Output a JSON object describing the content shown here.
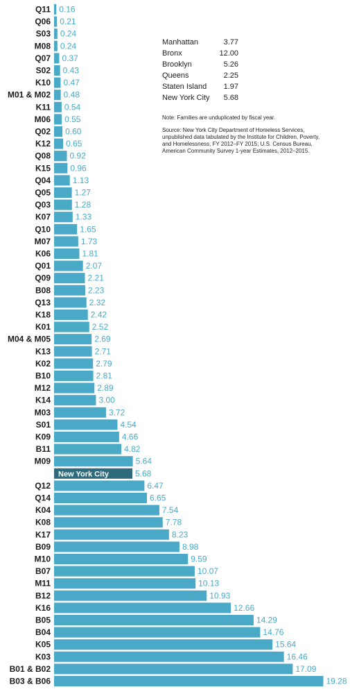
{
  "chart_data": {
    "type": "bar",
    "orientation": "horizontal",
    "title": "",
    "xlabel": "",
    "ylabel": "",
    "xlim": [
      0,
      20
    ],
    "grid": false,
    "colors": {
      "bar": "#4aa9c6",
      "highlight": "#2e6a7c",
      "value_text": "#4aa9c6"
    },
    "categories": [
      "Q11",
      "Q06",
      "S03",
      "M08",
      "Q07",
      "S02",
      "K10",
      "M01 & M02",
      "K11",
      "M06",
      "Q02",
      "K12",
      "Q08",
      "K15",
      "Q04",
      "Q05",
      "Q03",
      "K07",
      "Q10",
      "M07",
      "K06",
      "Q01",
      "Q09",
      "B08",
      "Q13",
      "K18",
      "K01",
      "M04 & M05",
      "K13",
      "K02",
      "B10",
      "M12",
      "K14",
      "M03",
      "S01",
      "K09",
      "B11",
      "M09",
      "New York City",
      "Q12",
      "Q14",
      "K04",
      "K08",
      "K17",
      "B09",
      "M10",
      "B07",
      "M11",
      "B12",
      "K16",
      "B05",
      "B04",
      "K05",
      "K03",
      "B01 & B02",
      "B03 & B06"
    ],
    "values": [
      0.16,
      0.21,
      0.24,
      0.24,
      0.37,
      0.43,
      0.47,
      0.48,
      0.54,
      0.55,
      0.6,
      0.65,
      0.92,
      0.96,
      1.13,
      1.27,
      1.28,
      1.33,
      1.65,
      1.73,
      1.81,
      2.07,
      2.21,
      2.23,
      2.32,
      2.42,
      2.52,
      2.69,
      2.71,
      2.79,
      2.81,
      2.89,
      3.0,
      3.72,
      4.54,
      4.66,
      4.82,
      5.64,
      5.68,
      6.47,
      6.65,
      7.54,
      7.78,
      8.23,
      8.98,
      9.59,
      10.07,
      10.13,
      10.93,
      12.66,
      14.29,
      14.76,
      15.64,
      16.46,
      17.09,
      19.28
    ],
    "value_labels": [
      "0.16",
      "0.21",
      "0.24",
      "0.24",
      "0.37",
      "0.43",
      "0.47",
      "0.48",
      "0.54",
      "0.55",
      "0.60",
      "0.65",
      "0.92",
      "0.96",
      "1.13",
      "1.27",
      "1.28",
      "1.33",
      "1.65",
      "1.73",
      "1.81",
      "2.07",
      "2.21",
      "2.23",
      "2.32",
      "2.42",
      "2.52",
      "2.69",
      "2.71",
      "2.79",
      "2.81",
      "2.89",
      "3.00",
      "3.72",
      "4.54",
      "4.66",
      "4.82",
      "5.64",
      "5.68",
      "6.47",
      "6.65",
      "7.54",
      "7.78",
      "8.23",
      "8.98",
      "9.59",
      "10.07",
      "10.13",
      "10.93",
      "12.66",
      "14.29",
      "14.76",
      "15.64",
      "16.46",
      "17.09",
      "19.28"
    ],
    "highlight_category": "New York City"
  },
  "legend": [
    {
      "name": "Manhattan",
      "value": "3.77"
    },
    {
      "name": "Bronx",
      "value": "12.00"
    },
    {
      "name": "Brooklyn",
      "value": "5.26"
    },
    {
      "name": "Queens",
      "value": "2.25"
    },
    {
      "name": "Staten Island",
      "value": "1.97"
    },
    {
      "name": "New York City",
      "value": "5.68"
    }
  ],
  "notes": {
    "note": "Note: Families are unduplicated by fiscal year.",
    "source": "Source: New York City Department of Homeless Services, unpublished data tabulated by the Institute for Children, Poverty, and Homelessness, FY 2012–FY 2015; U.S. Census Bureau, American Community Survey 1-year Estimates, 2012–2015."
  }
}
